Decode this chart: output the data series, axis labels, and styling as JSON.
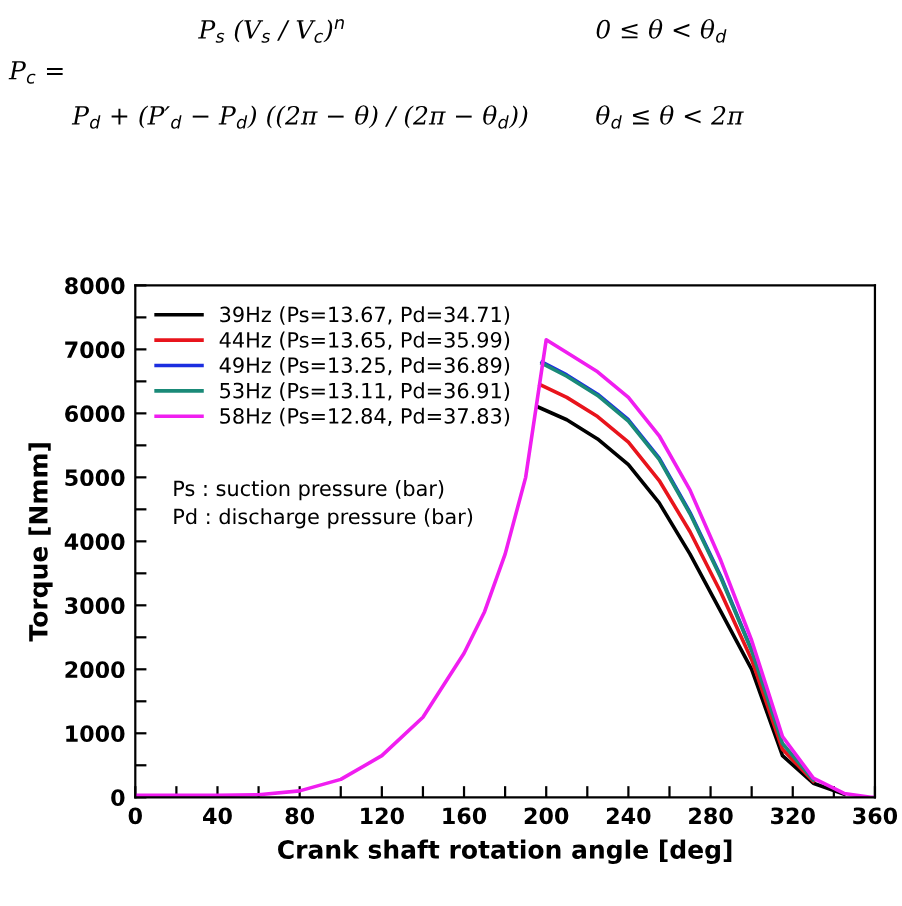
{
  "chart_data": {
    "type": "line",
    "xlabel": "Crank shaft rotation angle [deg]",
    "ylabel": "Torque [Nmm]",
    "annotations": [
      "P$_{c}$ =",
      "P$_{s}$ (V$_{s}$ / V$_{c}$)$^{n}$",
      "0 ≤ θ < θ$_{d}$",
      "P$_{d}$ + (P′$_{d}$ − P$_{d}$) ((2π − θ) / (2π − θ$_{d}$))",
      "θ$_{d}$ ≤ θ < 2π",
      "Ps : suction pressure (bar)",
      "Pd : discharge pressure (bar)"
    ],
    "xlim": [
      0,
      360
    ],
    "ylim": [
      0,
      8000
    ],
    "xticks": [
      0,
      {
        "value": 20,
        "label": null
      },
      40,
      {
        "value": 60,
        "label": null
      },
      80,
      {
        "value": 100,
        "label": null
      },
      120,
      {
        "value": 140,
        "label": null
      },
      160,
      {
        "value": 180,
        "label": null
      },
      200,
      {
        "value": 220,
        "label": null
      },
      240,
      {
        "value": 260,
        "label": null
      },
      280,
      {
        "value": 300,
        "label": null
      },
      320,
      {
        "value": 340,
        "label": null
      },
      360
    ],
    "yticks": [
      0,
      {
        "value": 500,
        "label": null
      },
      1000,
      {
        "value": 1500,
        "label": null
      },
      2000,
      {
        "value": 2500,
        "label": null
      },
      3000,
      {
        "value": 3500,
        "label": null
      },
      4000,
      {
        "value": 4500,
        "label": null
      },
      5000,
      {
        "value": 5500,
        "label": null
      },
      6000,
      {
        "value": 6500,
        "label": null
      },
      7000,
      {
        "value": 7500,
        "label": null
      },
      8000
    ],
    "grid": false,
    "legend": "top left",
    "marker": "none",
    "line_style": "solid",
    "series": [
      {
        "name": "39Hz (Ps=13.67, Pd=34.71)",
        "color": "#000000",
        "x": [
          196,
          210,
          225,
          240,
          255,
          270,
          285,
          300,
          315,
          330,
          345
        ],
        "values": [
          6100,
          5900,
          5600,
          5200,
          4600,
          3800,
          2900,
          2000,
          650,
          220,
          50
        ]
      },
      {
        "name": "44Hz (Ps=13.65, Pd=35.99)",
        "color": "#e8141c",
        "x": [
          197,
          210,
          225,
          240,
          255,
          270,
          285,
          300,
          315,
          330
        ],
        "values": [
          6450,
          6250,
          5950,
          5550,
          4950,
          4150,
          3200,
          2150,
          750,
          250
        ]
      },
      {
        "name": "49Hz (Ps=13.25, Pd=36.89)",
        "color": "#1c2ee0",
        "x": [
          198,
          210,
          225,
          240,
          255,
          270,
          285,
          300
        ],
        "values": [
          6800,
          6600,
          6300,
          5900,
          5300,
          4450,
          3450,
          2300
        ]
      },
      {
        "name": "53Hz (Ps=13.11, Pd=36.91)",
        "color": "#1a8a78",
        "x": [
          198,
          210,
          225,
          240,
          255,
          270,
          285,
          300,
          315,
          330
        ],
        "values": [
          6780,
          6580,
          6280,
          5880,
          5280,
          4430,
          3430,
          2290,
          840,
          270
        ]
      },
      {
        "name": "58Hz (Ps=12.84, Pd=37.83)",
        "color": "#f01ef0",
        "x": [
          0,
          40,
          60,
          80,
          100,
          120,
          140,
          160,
          170,
          180,
          190,
          200,
          210,
          225,
          240,
          255,
          270,
          285,
          300,
          315,
          330,
          345,
          358,
          360
        ],
        "values": [
          30,
          30,
          40,
          100,
          280,
          650,
          1250,
          2250,
          2900,
          3800,
          5000,
          7150,
          6950,
          6650,
          6250,
          5650,
          4800,
          3700,
          2450,
          950,
          300,
          60,
          0,
          0
        ]
      }
    ]
  }
}
